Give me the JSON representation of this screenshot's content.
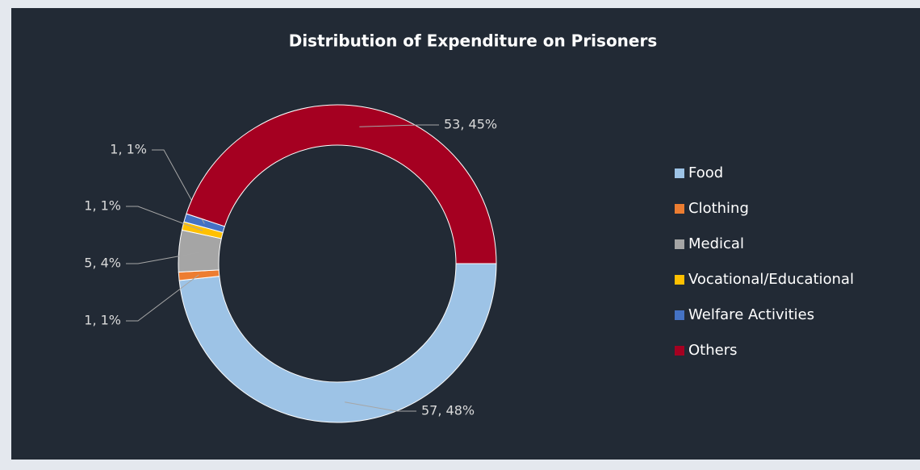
{
  "chart_data": {
    "type": "donut",
    "title": "Distribution of Expenditure on Prisoners",
    "categories": [
      "Food",
      "Clothing",
      "Medical",
      "Vocational/Educational",
      "Welfare Activities",
      "Others"
    ],
    "values": [
      57,
      1,
      5,
      1,
      1,
      53
    ],
    "value_labels": [
      "57, 48%",
      "1, 1%",
      "5, 4%",
      "1, 1%",
      "1, 1%",
      "53, 45%"
    ],
    "colors": [
      "#9dc3e6",
      "#ed7d31",
      "#a5a5a5",
      "#ffc000",
      "#4472c4",
      "#a50021"
    ],
    "legend": "right"
  }
}
